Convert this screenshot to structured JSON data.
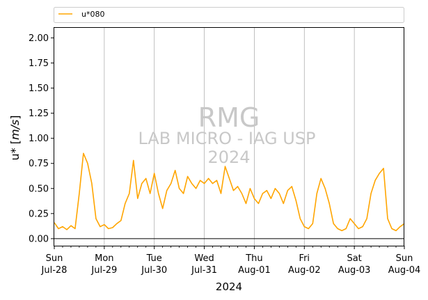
{
  "chart_data": {
    "type": "line",
    "title": "",
    "xlabel": "2024",
    "ylabel": "u* [m/s]",
    "ylim": [
      -0.07,
      2.1
    ],
    "yticks": [
      "0.00",
      "0.25",
      "0.50",
      "0.75",
      "1.00",
      "1.25",
      "1.50",
      "1.75",
      "2.00"
    ],
    "xticks": [
      {
        "day": "Sun",
        "date": "Jul-28"
      },
      {
        "day": "Mon",
        "date": "Jul-29"
      },
      {
        "day": "Tue",
        "date": "Jul-30"
      },
      {
        "day": "Wed",
        "date": "Jul-31"
      },
      {
        "day": "Thu",
        "date": "Aug-01"
      },
      {
        "day": "Fri",
        "date": "Aug-02"
      },
      {
        "day": "Sat",
        "date": "Aug-03"
      },
      {
        "day": "Sun",
        "date": "Aug-04"
      }
    ],
    "xlim": [
      "2024-07-28",
      "2024-08-04"
    ],
    "grid": "vertical at day ticks",
    "legend_position": "top, above plot",
    "series": [
      {
        "name": "u*080",
        "color": "#FFA500",
        "x": [
          "2024-07-28 00:00",
          "2024-07-28 02:00",
          "2024-07-28 04:00",
          "2024-07-28 06:00",
          "2024-07-28 08:00",
          "2024-07-28 10:00",
          "2024-07-28 12:00",
          "2024-07-28 14:00",
          "2024-07-28 16:00",
          "2024-07-28 18:00",
          "2024-07-28 20:00",
          "2024-07-28 22:00",
          "2024-07-29 00:00",
          "2024-07-29 02:00",
          "2024-07-29 04:00",
          "2024-07-29 06:00",
          "2024-07-29 08:00",
          "2024-07-29 10:00",
          "2024-07-29 12:00",
          "2024-07-29 14:00",
          "2024-07-29 16:00",
          "2024-07-29 18:00",
          "2024-07-29 20:00",
          "2024-07-29 22:00",
          "2024-07-30 00:00",
          "2024-07-30 02:00",
          "2024-07-30 04:00",
          "2024-07-30 06:00",
          "2024-07-30 08:00",
          "2024-07-30 10:00",
          "2024-07-30 12:00",
          "2024-07-30 14:00",
          "2024-07-30 16:00",
          "2024-07-30 18:00",
          "2024-07-30 20:00",
          "2024-07-30 22:00",
          "2024-07-31 00:00",
          "2024-07-31 02:00",
          "2024-07-31 04:00",
          "2024-07-31 06:00",
          "2024-07-31 08:00",
          "2024-07-31 10:00",
          "2024-07-31 12:00",
          "2024-07-31 14:00",
          "2024-07-31 16:00",
          "2024-07-31 18:00",
          "2024-07-31 20:00",
          "2024-07-31 22:00",
          "2024-08-01 00:00",
          "2024-08-01 02:00",
          "2024-08-01 04:00",
          "2024-08-01 06:00",
          "2024-08-01 08:00",
          "2024-08-01 10:00",
          "2024-08-01 12:00",
          "2024-08-01 14:00",
          "2024-08-01 16:00",
          "2024-08-01 18:00",
          "2024-08-01 20:00",
          "2024-08-01 22:00",
          "2024-08-02 00:00",
          "2024-08-02 02:00",
          "2024-08-02 04:00",
          "2024-08-02 06:00",
          "2024-08-02 08:00",
          "2024-08-02 10:00",
          "2024-08-02 12:00",
          "2024-08-02 14:00",
          "2024-08-02 16:00",
          "2024-08-02 18:00",
          "2024-08-02 20:00",
          "2024-08-02 22:00",
          "2024-08-03 00:00",
          "2024-08-03 02:00",
          "2024-08-03 04:00",
          "2024-08-03 06:00",
          "2024-08-03 08:00",
          "2024-08-03 10:00",
          "2024-08-03 12:00",
          "2024-08-03 14:00",
          "2024-08-03 16:00",
          "2024-08-03 18:00",
          "2024-08-03 20:00",
          "2024-08-03 22:00",
          "2024-08-04 00:00"
        ],
        "y": [
          0.16,
          0.1,
          0.12,
          0.09,
          0.13,
          0.1,
          0.45,
          0.85,
          0.75,
          0.55,
          0.2,
          0.12,
          0.14,
          0.1,
          0.11,
          0.15,
          0.18,
          0.35,
          0.45,
          0.78,
          0.4,
          0.55,
          0.6,
          0.45,
          0.65,
          0.45,
          0.3,
          0.48,
          0.55,
          0.68,
          0.5,
          0.45,
          0.62,
          0.55,
          0.5,
          0.58,
          0.55,
          0.6,
          0.55,
          0.58,
          0.45,
          0.72,
          0.6,
          0.48,
          0.52,
          0.45,
          0.35,
          0.5,
          0.4,
          0.35,
          0.45,
          0.48,
          0.4,
          0.5,
          0.45,
          0.35,
          0.48,
          0.52,
          0.38,
          0.2,
          0.12,
          0.1,
          0.15,
          0.45,
          0.6,
          0.5,
          0.35,
          0.15,
          0.1,
          0.08,
          0.1,
          0.2,
          0.15,
          0.1,
          0.12,
          0.2,
          0.45,
          0.58,
          0.65,
          0.7,
          0.2,
          0.1,
          0.08,
          0.12,
          0.15
        ]
      }
    ]
  },
  "watermark": {
    "line1": "RMG",
    "line2": "LAB MICRO - IAG USP",
    "line3": "2024"
  }
}
